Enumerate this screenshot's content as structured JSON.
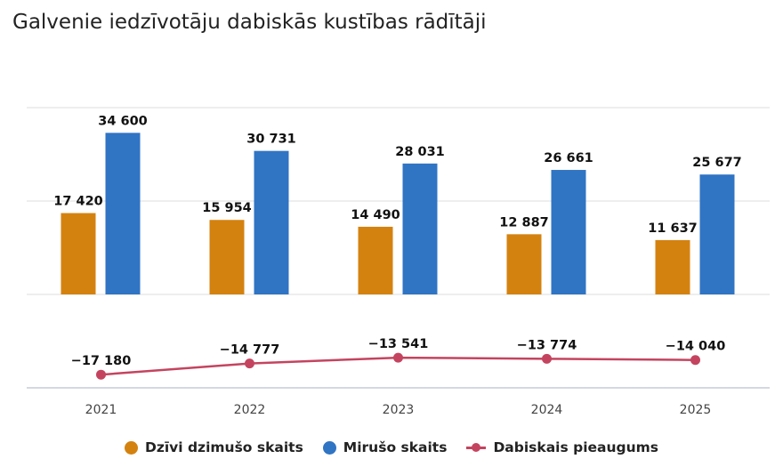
{
  "title": "Galvenie iedzīvotāju dabiskās kustības rādītāji",
  "chart_data": {
    "type": "bar+line",
    "title": "Galvenie iedzīvotāju dabiskās kustības rādītāji",
    "categories": [
      "2021",
      "2022",
      "2023",
      "2024",
      "2025"
    ],
    "ylim": [
      -20000,
      40000
    ],
    "grid": true,
    "legend_position": "bottom",
    "series": [
      {
        "name": "Dzīvi dzimušo skaits",
        "type": "bar",
        "color": "#d4820f",
        "values": [
          17420,
          15954,
          14490,
          12887,
          11637
        ],
        "labels": [
          "17 420",
          "15 954",
          "14 490",
          "12 887",
          "11 637"
        ]
      },
      {
        "name": "Mirušo skaits",
        "type": "bar",
        "color": "#3074c4",
        "values": [
          34600,
          30731,
          28031,
          26661,
          25677
        ],
        "labels": [
          "34 600",
          "30 731",
          "28 031",
          "26 661",
          "25 677"
        ]
      },
      {
        "name": "Dabiskais pieaugums",
        "type": "line",
        "color": "#c4445f",
        "values": [
          -17180,
          -14777,
          -13541,
          -13774,
          -14040
        ],
        "labels": [
          "−17 180",
          "−14 777",
          "−13 541",
          "−13 774",
          "−14 040"
        ]
      }
    ]
  }
}
